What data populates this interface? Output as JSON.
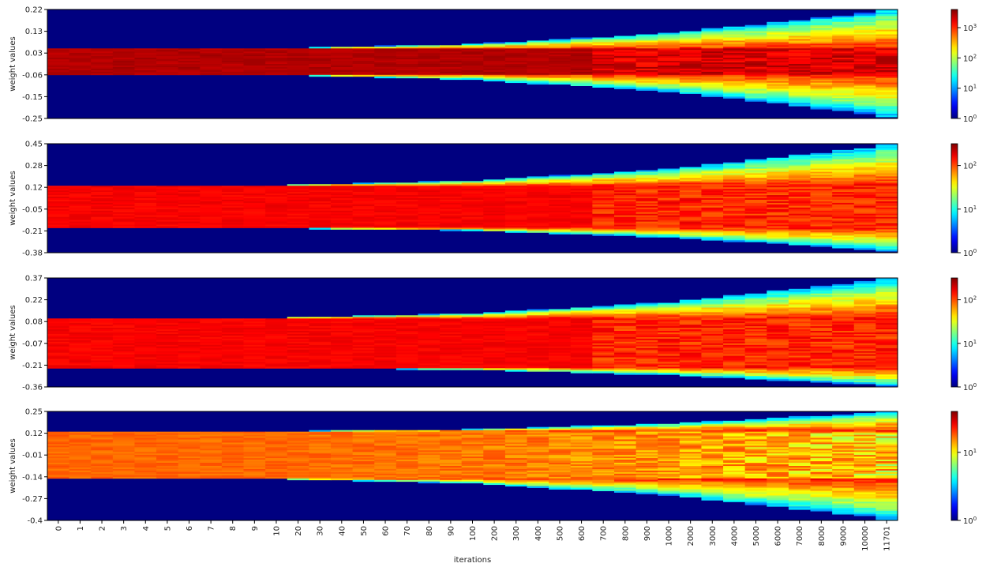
{
  "chart_data": {
    "type": "heatmap",
    "xlabel": "iterations",
    "ylabel": "weight values",
    "x_ticks": [
      "0",
      "1",
      "2",
      "3",
      "4",
      "5",
      "6",
      "7",
      "8",
      "9",
      "10",
      "20",
      "30",
      "40",
      "50",
      "60",
      "70",
      "80",
      "90",
      "100",
      "200",
      "300",
      "400",
      "500",
      "600",
      "700",
      "800",
      "900",
      "1000",
      "2000",
      "3000",
      "4000",
      "5000",
      "6000",
      "7000",
      "8000",
      "9000",
      "10000",
      "11701"
    ],
    "colormap": "jet",
    "colorbar_scale": "log",
    "panels": [
      {
        "y_ticks": [
          "0.22",
          "0.13",
          "0.03",
          "-0.06",
          "-0.15",
          "-0.25"
        ],
        "ylim": [
          -0.25,
          0.22
        ],
        "colorbar_ticks": [
          "10^3",
          "10^2",
          "10^1",
          "10^0"
        ],
        "colorbar_max_exp": 3.6,
        "init_range": [
          -0.06,
          0.05
        ],
        "final_range": [
          -0.245,
          0.22
        ],
        "core_level": 0.97
      },
      {
        "y_ticks": [
          "0.45",
          "0.28",
          "0.12",
          "-0.05",
          "-0.21",
          "-0.38"
        ],
        "ylim": [
          -0.38,
          0.45
        ],
        "colorbar_ticks": [
          "10^2",
          "10^1",
          "10^0"
        ],
        "colorbar_max_exp": 2.5,
        "init_range": [
          -0.19,
          0.13
        ],
        "final_range": [
          -0.37,
          0.45
        ],
        "core_level": 0.9
      },
      {
        "y_ticks": [
          "0.37",
          "0.22",
          "0.08",
          "-0.07",
          "-0.21",
          "-0.36"
        ],
        "ylim": [
          -0.36,
          0.37
        ],
        "colorbar_ticks": [
          "10^2",
          "10^1",
          "10^0"
        ],
        "colorbar_max_exp": 2.5,
        "init_range": [
          -0.23,
          0.1
        ],
        "final_range": [
          -0.355,
          0.37
        ],
        "core_level": 0.9
      },
      {
        "y_ticks": [
          "0.25",
          "0.12",
          "-0.01",
          "-0.14",
          "-0.27",
          "-0.4"
        ],
        "ylim": [
          -0.4,
          0.25
        ],
        "colorbar_ticks": [
          "10^1",
          "10^0"
        ],
        "colorbar_max_exp": 1.6,
        "init_range": [
          -0.15,
          0.13
        ],
        "final_range": [
          -0.4,
          0.25
        ],
        "core_level": 0.8
      }
    ]
  }
}
